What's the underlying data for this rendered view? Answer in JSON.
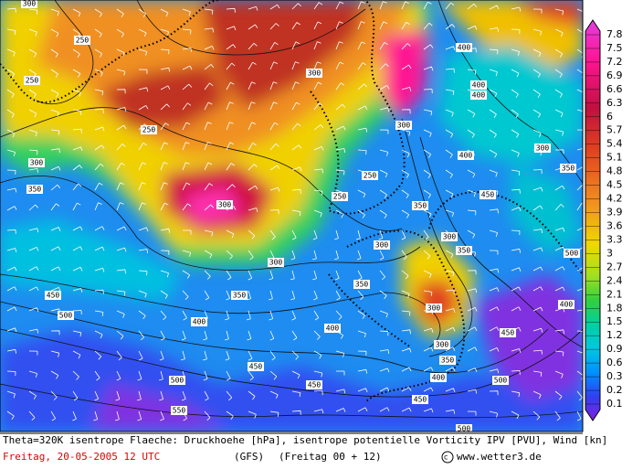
{
  "map": {
    "colorbar_labels": [
      7.8,
      7.5,
      7.2,
      6.9,
      6.6,
      6.3,
      6,
      5.7,
      5.4,
      5.1,
      4.8,
      4.5,
      4.2,
      3.9,
      3.6,
      3.3,
      3,
      2.7,
      2.4,
      2.1,
      1.8,
      1.5,
      1.2,
      0.9,
      0.6,
      0.3,
      0.2,
      0.1
    ],
    "contour_labels": [
      300,
      250,
      250,
      250,
      300,
      300,
      350,
      300,
      250,
      250,
      300,
      300,
      300,
      350,
      300,
      350,
      400,
      400,
      400,
      400,
      300,
      350,
      450,
      500,
      450,
      500,
      350,
      350,
      400,
      400,
      300,
      300,
      450,
      350,
      400,
      500,
      450,
      450,
      500,
      450,
      550,
      500,
      400
    ]
  },
  "footer": {
    "description": "Theta=320K isentrope Flaeche: Druckhoehe [hPa], isentrope potentielle Vorticity IPV [PVU], Wind [kn]",
    "date": "Freitag, 20-05-2005   12 UTC",
    "model": "(GFS)",
    "run": "(Freitag 00 + 12)",
    "source": "www.wetter3.de"
  }
}
